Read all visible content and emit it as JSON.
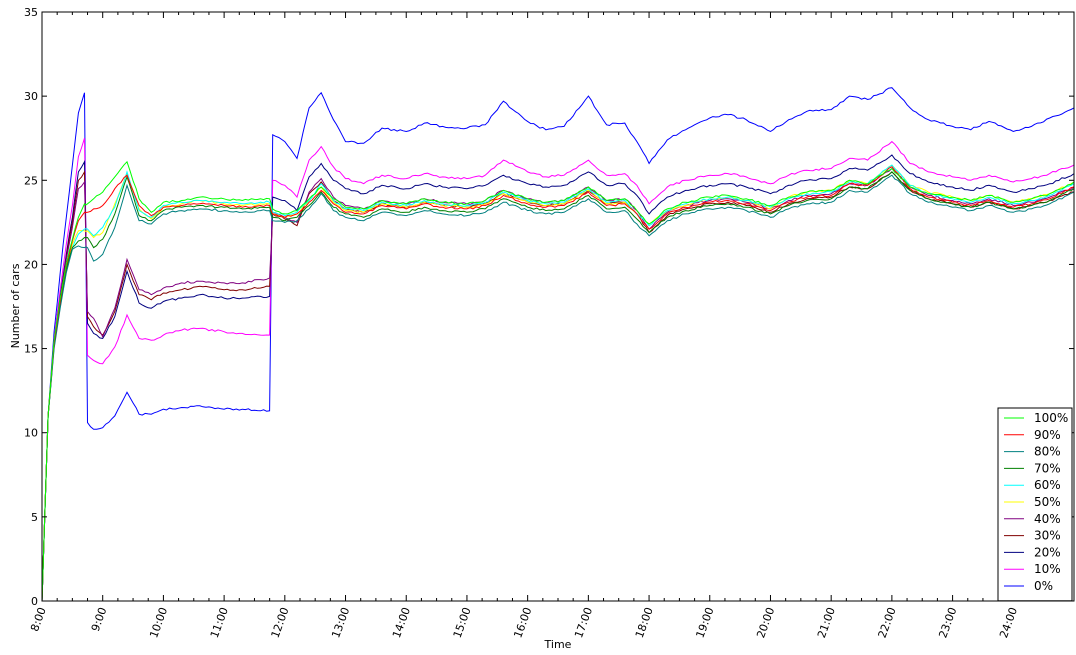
{
  "chart_data": {
    "type": "line",
    "title": "",
    "xlabel": "Time",
    "ylabel": "Number of cars",
    "xlim": [
      8.0,
      25.0
    ],
    "ylim": [
      0,
      35
    ],
    "x_ticks": [
      "8:00",
      "9:00",
      "10:00",
      "11:00",
      "12:00",
      "13:00",
      "14:00",
      "15:00",
      "16:00",
      "17:00",
      "18:00",
      "19:00",
      "20:00",
      "21:00",
      "22:00",
      "23:00",
      "24:00"
    ],
    "x_tick_values": [
      8,
      9,
      10,
      11,
      12,
      13,
      14,
      15,
      16,
      17,
      18,
      19,
      20,
      21,
      22,
      23,
      24
    ],
    "y_ticks": [
      "0",
      "5",
      "10",
      "15",
      "20",
      "25",
      "30",
      "35"
    ],
    "y_tick_values": [
      0,
      5,
      10,
      15,
      20,
      25,
      30,
      35
    ],
    "grid": false,
    "legend_position": "bottom-right",
    "x": [
      8.0,
      8.1,
      8.2,
      8.3,
      8.4,
      8.5,
      8.6,
      8.7,
      8.75,
      8.85,
      9.0,
      9.2,
      9.4,
      9.6,
      9.8,
      10.0,
      10.3,
      10.6,
      11.0,
      11.3,
      11.6,
      11.75,
      11.8,
      12.0,
      12.2,
      12.4,
      12.6,
      12.8,
      13.0,
      13.3,
      13.6,
      14.0,
      14.3,
      14.6,
      15.0,
      15.3,
      15.6,
      16.0,
      16.3,
      16.6,
      17.0,
      17.3,
      17.6,
      17.8,
      18.0,
      18.3,
      18.6,
      19.0,
      19.3,
      19.6,
      20.0,
      20.3,
      20.6,
      21.0,
      21.3,
      21.6,
      22.0,
      22.3,
      22.6,
      23.0,
      23.3,
      23.6,
      24.0,
      24.3,
      24.6,
      25.0
    ],
    "series": [
      {
        "name": "100%",
        "color": "#00ff00",
        "values": [
          0,
          11,
          15.5,
          18,
          20,
          21.5,
          22.8,
          23.6,
          23.6,
          23.9,
          24.3,
          25.2,
          26.1,
          23.9,
          23.1,
          23.7,
          23.8,
          24.0,
          23.9,
          23.8,
          23.9,
          23.9,
          23.3,
          23.0,
          23.2,
          23.9,
          24.6,
          23.9,
          23.4,
          23.3,
          23.8,
          23.6,
          23.9,
          23.7,
          23.6,
          23.8,
          24.4,
          23.9,
          23.7,
          23.8,
          24.6,
          23.8,
          23.9,
          23.2,
          22.4,
          23.3,
          23.7,
          24.0,
          24.1,
          23.9,
          23.5,
          24.0,
          24.3,
          24.4,
          25.0,
          24.8,
          25.7,
          24.6,
          24.2,
          24.0,
          23.8,
          24.1,
          23.7,
          23.9,
          24.2,
          24.9
        ]
      },
      {
        "name": "90%",
        "color": "#ff0000",
        "values": [
          0,
          11,
          15.3,
          17.8,
          19.9,
          21.4,
          22.6,
          23.1,
          23.1,
          23.3,
          23.5,
          24.5,
          25.3,
          23.5,
          22.9,
          23.4,
          23.5,
          23.6,
          23.5,
          23.4,
          23.5,
          23.5,
          23.0,
          22.8,
          23.0,
          23.7,
          24.4,
          23.6,
          23.1,
          23.0,
          23.5,
          23.3,
          23.6,
          23.4,
          23.3,
          23.5,
          24.1,
          23.6,
          23.4,
          23.5,
          24.3,
          23.5,
          23.6,
          23.0,
          22.1,
          23.0,
          23.4,
          23.7,
          23.8,
          23.6,
          23.2,
          23.7,
          24.0,
          24.1,
          24.8,
          24.7,
          25.8,
          24.5,
          24.0,
          23.7,
          23.5,
          23.8,
          23.4,
          23.6,
          23.9,
          24.6
        ]
      },
      {
        "name": "80%",
        "color": "#008080",
        "values": [
          0,
          11,
          15.0,
          17.4,
          19.5,
          20.9,
          21.1,
          21.0,
          21.0,
          20.2,
          20.6,
          22.2,
          24.7,
          22.6,
          22.4,
          23.0,
          23.2,
          23.3,
          23.2,
          23.1,
          23.2,
          23.2,
          22.6,
          22.5,
          22.6,
          23.3,
          24.2,
          23.2,
          22.8,
          22.6,
          23.1,
          22.9,
          23.2,
          23.0,
          22.9,
          23.1,
          23.7,
          23.2,
          23.0,
          23.1,
          23.9,
          23.1,
          23.2,
          22.4,
          21.7,
          22.6,
          23.0,
          23.3,
          23.4,
          23.2,
          22.8,
          23.3,
          23.6,
          23.7,
          24.4,
          24.3,
          25.3,
          24.2,
          23.7,
          23.4,
          23.2,
          23.5,
          23.1,
          23.3,
          23.6,
          24.3
        ]
      },
      {
        "name": "70%",
        "color": "#008000",
        "values": [
          0,
          11,
          15.2,
          17.6,
          19.7,
          21.0,
          21.4,
          21.6,
          21.6,
          21.0,
          21.5,
          23.0,
          25.2,
          22.9,
          22.6,
          23.2,
          23.4,
          23.5,
          23.4,
          23.3,
          23.4,
          23.4,
          22.8,
          22.6,
          22.8,
          23.5,
          24.3,
          23.4,
          23.0,
          22.8,
          23.3,
          23.1,
          23.4,
          23.2,
          23.1,
          23.3,
          23.9,
          23.4,
          23.2,
          23.3,
          24.1,
          23.3,
          23.4,
          22.7,
          21.9,
          22.8,
          23.2,
          23.5,
          23.6,
          23.4,
          23.0,
          23.5,
          23.8,
          23.9,
          24.6,
          24.5,
          25.5,
          24.4,
          23.9,
          23.6,
          23.4,
          23.7,
          23.3,
          23.5,
          23.8,
          24.5
        ]
      },
      {
        "name": "60%",
        "color": "#00ffff",
        "values": [
          0,
          11,
          15.1,
          17.5,
          19.6,
          21.0,
          21.8,
          22.1,
          22.1,
          21.7,
          22.2,
          23.4,
          25.5,
          23.2,
          22.8,
          23.5,
          23.7,
          23.8,
          23.7,
          23.6,
          23.7,
          23.7,
          23.1,
          22.9,
          23.1,
          23.8,
          24.8,
          23.8,
          23.3,
          23.2,
          23.7,
          23.5,
          23.8,
          23.6,
          23.5,
          23.7,
          24.3,
          23.8,
          23.6,
          23.7,
          24.5,
          23.7,
          23.8,
          23.0,
          22.3,
          23.2,
          23.6,
          23.9,
          24.0,
          23.8,
          23.4,
          23.9,
          24.2,
          24.3,
          24.9,
          24.8,
          25.9,
          24.7,
          24.2,
          23.9,
          23.7,
          24.0,
          23.6,
          23.8,
          24.1,
          24.8
        ]
      },
      {
        "name": "50%",
        "color": "#ffff00",
        "values": [
          0,
          11,
          15.2,
          17.6,
          19.8,
          21.2,
          22.0,
          22.0,
          22.0,
          21.6,
          21.9,
          23.6,
          25.4,
          23.3,
          22.7,
          23.4,
          23.6,
          23.8,
          23.6,
          23.5,
          23.6,
          23.6,
          23.0,
          22.8,
          23.0,
          23.8,
          24.6,
          23.7,
          23.2,
          23.1,
          23.6,
          23.4,
          23.7,
          23.5,
          23.4,
          23.6,
          24.2,
          23.7,
          23.5,
          23.6,
          24.4,
          23.6,
          23.7,
          23.0,
          22.4,
          23.2,
          23.5,
          23.9,
          24.0,
          23.8,
          23.3,
          24.0,
          24.3,
          24.4,
          25.0,
          24.8,
          25.9,
          24.7,
          24.3,
          24.0,
          23.8,
          24.1,
          23.7,
          23.9,
          24.2,
          24.9
        ]
      },
      {
        "name": "40%",
        "color": "#800080",
        "values": [
          0,
          11,
          15.3,
          17.9,
          20.3,
          22.2,
          24.5,
          24.9,
          17.2,
          16.8,
          15.7,
          17.4,
          20.3,
          18.5,
          18.2,
          18.6,
          18.9,
          19.0,
          18.9,
          18.9,
          19.1,
          19.2,
          23.1,
          22.8,
          22.5,
          24.3,
          25.1,
          24.0,
          23.5,
          23.3,
          23.8,
          23.6,
          23.9,
          23.7,
          23.6,
          23.8,
          24.4,
          23.9,
          23.7,
          23.8,
          24.6,
          23.8,
          23.9,
          23.2,
          22.1,
          23.1,
          23.5,
          23.8,
          23.9,
          23.7,
          23.3,
          23.8,
          24.1,
          24.2,
          24.8,
          24.7,
          25.7,
          24.6,
          24.1,
          23.8,
          23.6,
          23.9,
          23.5,
          23.7,
          24.0,
          24.6
        ]
      },
      {
        "name": "30%",
        "color": "#800000",
        "values": [
          0,
          11,
          15.3,
          17.9,
          20.4,
          22.5,
          25.0,
          25.5,
          16.9,
          16.3,
          15.8,
          17.2,
          20.0,
          18.2,
          17.9,
          18.3,
          18.5,
          18.7,
          18.5,
          18.5,
          18.6,
          18.7,
          23.0,
          22.7,
          22.3,
          24.2,
          24.9,
          23.8,
          23.3,
          23.1,
          23.6,
          23.4,
          23.7,
          23.5,
          23.4,
          23.6,
          24.2,
          23.7,
          23.5,
          23.6,
          24.4,
          23.6,
          23.7,
          23.0,
          21.9,
          22.9,
          23.3,
          23.6,
          23.7,
          23.5,
          23.1,
          23.6,
          23.9,
          24.0,
          24.6,
          24.5,
          25.5,
          24.4,
          23.9,
          23.6,
          23.4,
          23.7,
          23.3,
          23.5,
          23.8,
          24.3
        ]
      },
      {
        "name": "20%",
        "color": "#000080",
        "values": [
          0,
          11,
          15.4,
          18.1,
          20.6,
          22.8,
          25.5,
          26.1,
          16.5,
          15.9,
          15.6,
          16.9,
          19.6,
          17.7,
          17.4,
          17.8,
          18.0,
          18.2,
          18.0,
          18.0,
          18.1,
          18.1,
          24.0,
          23.8,
          23.2,
          25.2,
          26.0,
          25.0,
          24.5,
          24.2,
          24.7,
          24.5,
          24.8,
          24.6,
          24.5,
          24.7,
          25.3,
          24.8,
          24.6,
          24.7,
          25.5,
          24.7,
          24.8,
          24.1,
          23.0,
          24.0,
          24.4,
          24.7,
          24.8,
          24.6,
          24.2,
          24.7,
          25.0,
          25.1,
          25.7,
          25.6,
          26.5,
          25.4,
          24.9,
          24.6,
          24.4,
          24.7,
          24.3,
          24.5,
          24.8,
          25.4
        ]
      },
      {
        "name": "10%",
        "color": "#ff00ff",
        "values": [
          0,
          11,
          15.6,
          18.5,
          21.2,
          23.5,
          26.4,
          27.5,
          14.6,
          14.3,
          14.1,
          15.1,
          17.0,
          15.6,
          15.5,
          15.8,
          16.1,
          16.2,
          16.0,
          15.9,
          15.8,
          15.8,
          25.0,
          24.7,
          24.0,
          26.2,
          27.0,
          25.8,
          25.1,
          24.8,
          25.3,
          25.1,
          25.4,
          25.2,
          25.1,
          25.3,
          26.2,
          25.5,
          25.2,
          25.3,
          26.2,
          25.3,
          25.4,
          24.7,
          23.6,
          24.6,
          25.0,
          25.3,
          25.4,
          25.2,
          24.8,
          25.3,
          25.6,
          25.7,
          26.3,
          26.2,
          27.3,
          26.0,
          25.5,
          25.2,
          25.0,
          25.3,
          24.9,
          25.1,
          25.4,
          25.9
        ]
      },
      {
        "name": "0%",
        "color": "#0000ff",
        "values": [
          0,
          11,
          16.0,
          19.5,
          22.8,
          25.9,
          29.0,
          30.2,
          10.6,
          10.2,
          10.3,
          11.0,
          12.4,
          11.1,
          11.1,
          11.4,
          11.5,
          11.6,
          11.4,
          11.4,
          11.3,
          11.3,
          27.7,
          27.3,
          26.3,
          29.3,
          30.2,
          28.6,
          27.3,
          27.2,
          28.1,
          27.9,
          28.4,
          28.2,
          28.1,
          28.3,
          29.7,
          28.5,
          28.0,
          28.2,
          30.0,
          28.3,
          28.4,
          27.3,
          26.0,
          27.4,
          28.0,
          28.7,
          28.9,
          28.6,
          27.9,
          28.6,
          29.1,
          29.2,
          30.0,
          29.8,
          30.5,
          29.3,
          28.6,
          28.2,
          28.0,
          28.5,
          27.9,
          28.2,
          28.7,
          29.3
        ]
      }
    ]
  }
}
